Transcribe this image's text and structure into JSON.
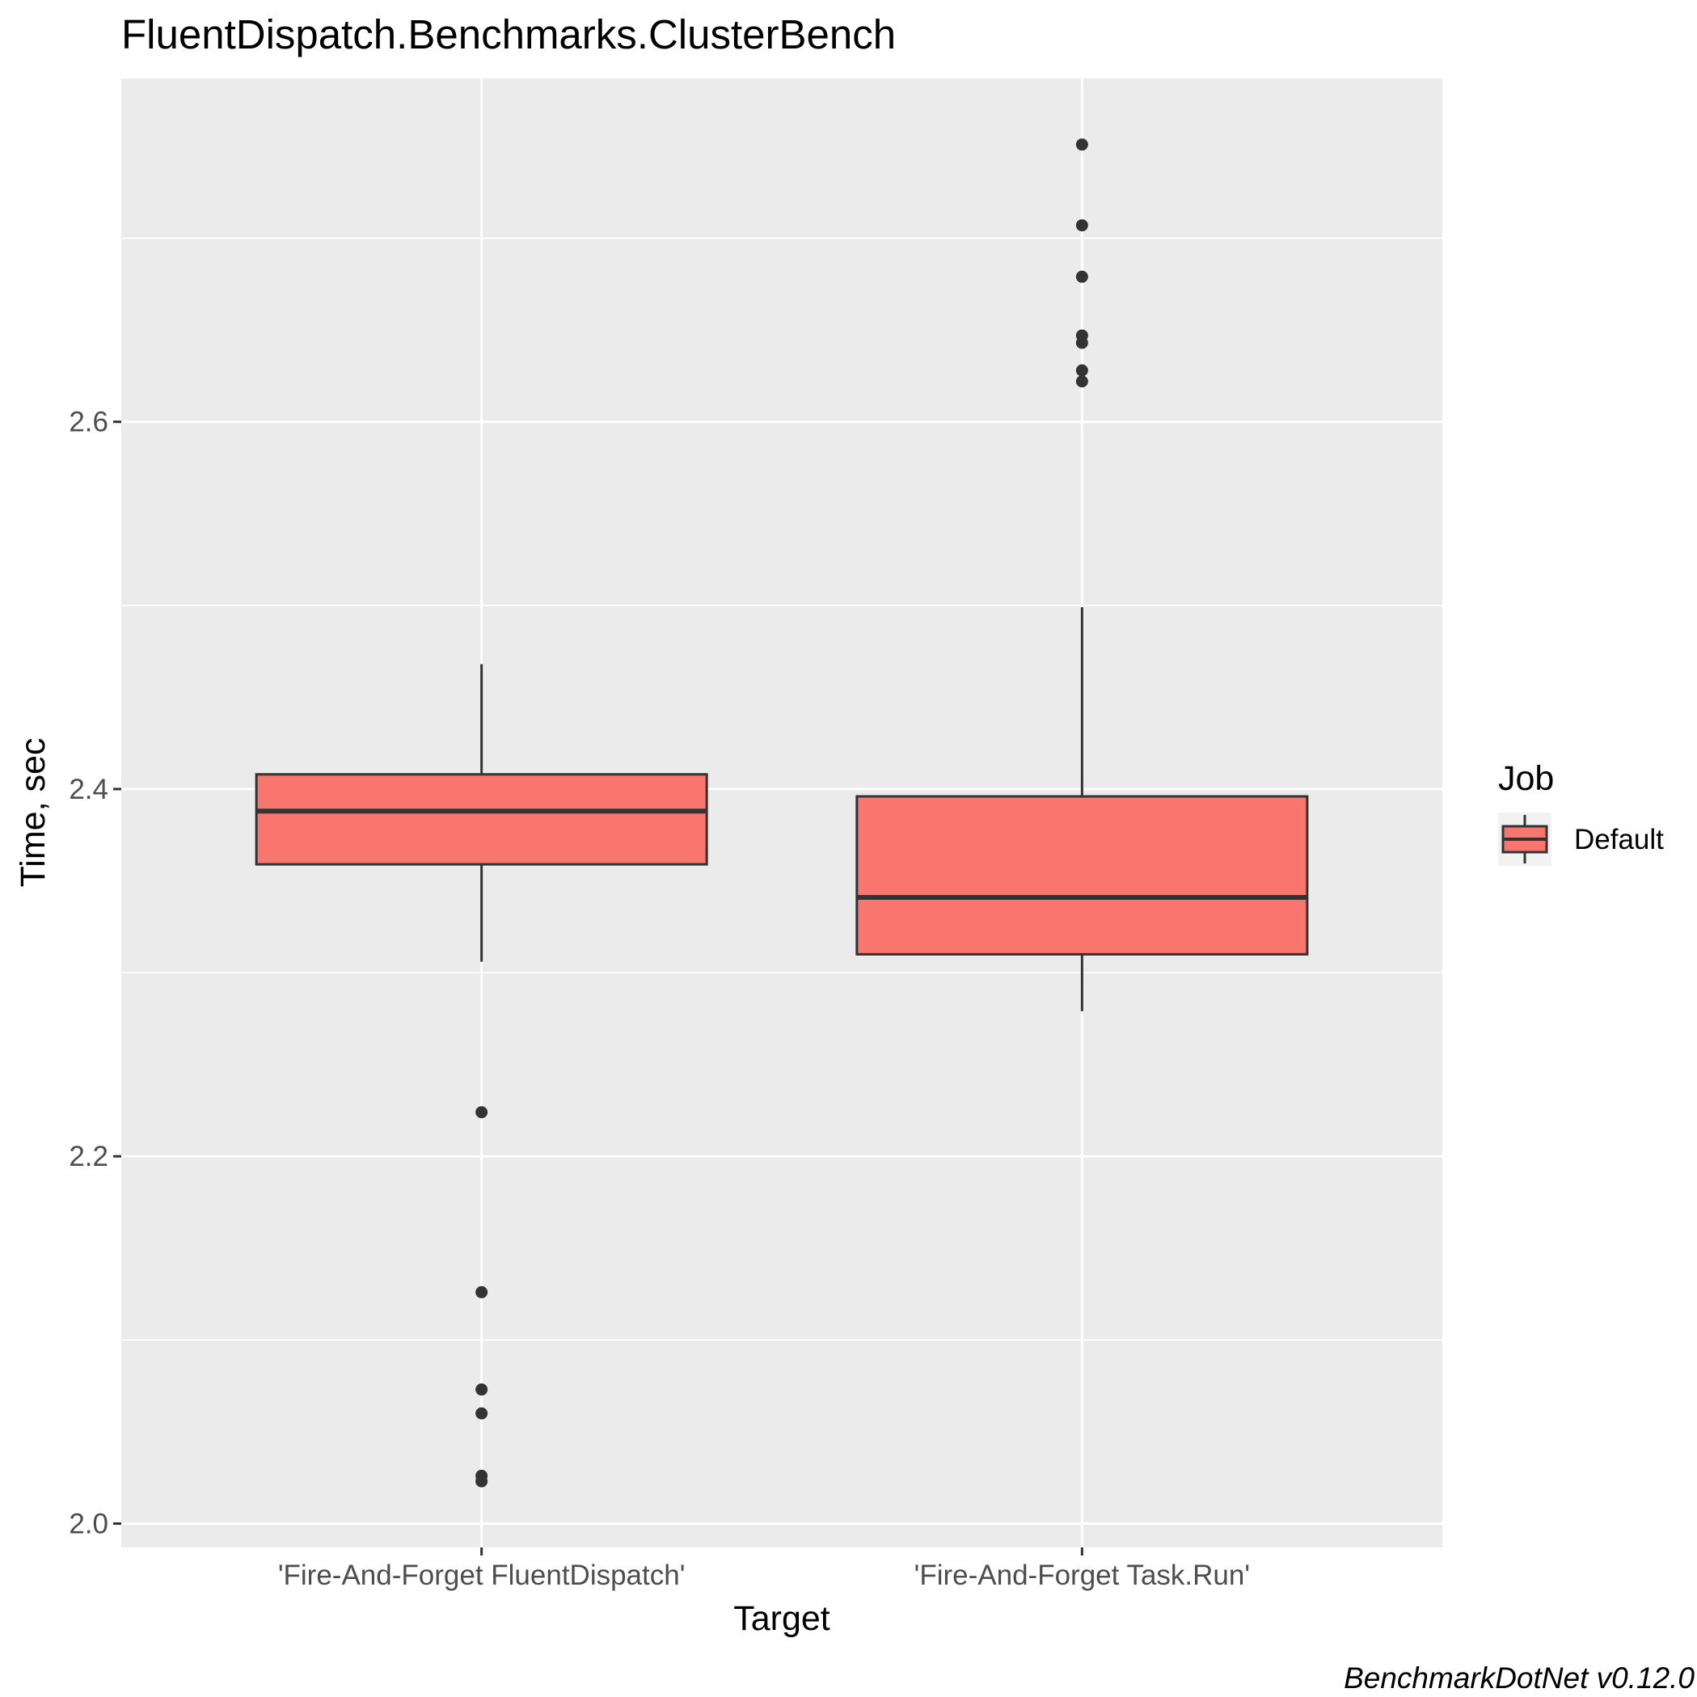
{
  "chart_data": {
    "type": "boxplot",
    "title": "FluentDispatch.Benchmarks.ClusterBench",
    "xlabel": "Target",
    "ylabel": "Time, sec",
    "ylim": [
      1.987,
      2.787
    ],
    "y_ticks": [
      2.0,
      2.2,
      2.4,
      2.6
    ],
    "y_tick_labels": [
      "2.0",
      "2.2",
      "2.4",
      "2.6"
    ],
    "y_minor_ticks": [
      2.1,
      2.3,
      2.5,
      2.7
    ],
    "grid": true,
    "categories": [
      "'Fire-And-Forget FluentDispatch'",
      "'Fire-And-Forget Task.Run'"
    ],
    "series": [
      {
        "name": "Default",
        "color": "#f8766d",
        "boxes": [
          {
            "whisker_low": 2.306,
            "q1": 2.359,
            "median": 2.388,
            "q3": 2.408,
            "whisker_high": 2.468,
            "outliers": [
              2.224,
              2.126,
              2.073,
              2.06,
              2.026,
              2.023
            ]
          },
          {
            "whisker_low": 2.279,
            "q1": 2.31,
            "median": 2.341,
            "q3": 2.396,
            "whisker_high": 2.499,
            "outliers": [
              2.751,
              2.707,
              2.679,
              2.647,
              2.643,
              2.628,
              2.622
            ]
          }
        ]
      }
    ],
    "legend": {
      "title": "Job",
      "labels": [
        "Default"
      ],
      "placement": "right"
    },
    "caption": "BenchmarkDotNet v0.12.0",
    "panel_background": "#ebebeb",
    "grid_color": "#ffffff",
    "box_outline": "#333333"
  }
}
